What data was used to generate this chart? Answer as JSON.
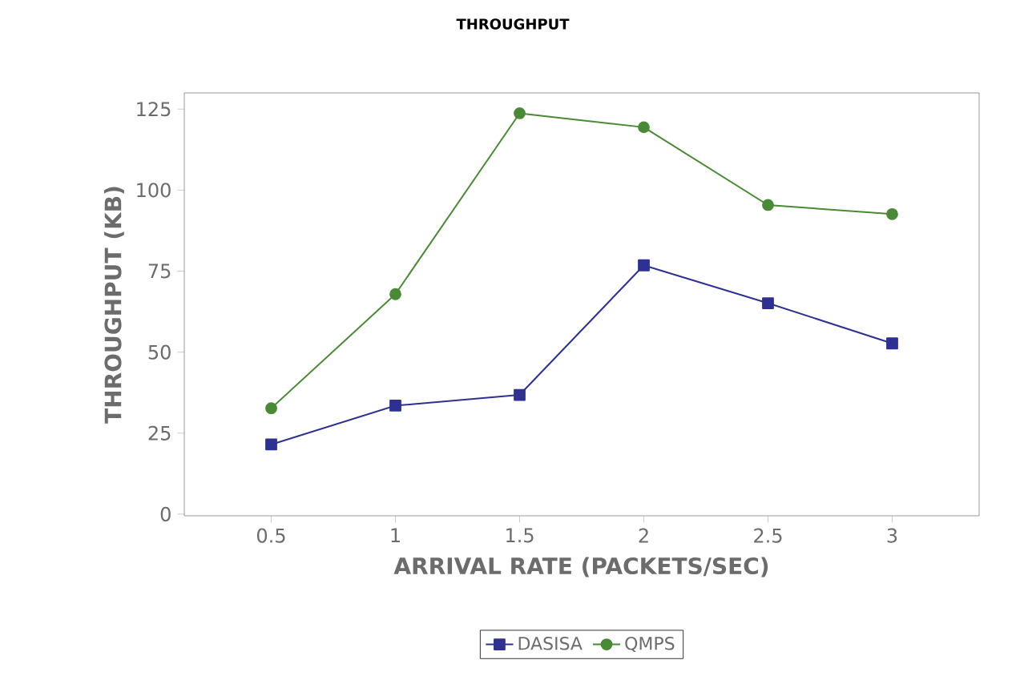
{
  "chart_data": {
    "type": "line",
    "title": "THROUGHPUT",
    "xlabel": "ARRIVAL RATE (PACKETS/SEC)",
    "ylabel": "THROUGHPUT (KB)",
    "x": [
      0.5,
      1,
      1.5,
      2,
      2.5,
      3
    ],
    "series": [
      {
        "name": "DASISA",
        "color": "#2e3192",
        "marker": "square",
        "values": [
          21.5,
          33.5,
          36.8,
          76.8,
          65.1,
          52.7
        ]
      },
      {
        "name": "QMPS",
        "color": "#4a8a36",
        "marker": "circle",
        "values": [
          32.7,
          67.9,
          123.7,
          119.4,
          95.4,
          92.6
        ]
      }
    ],
    "xlim": [
      0.15,
      3.35
    ],
    "ylim": [
      -0.5,
      130
    ],
    "xticks": [
      0.5,
      1,
      1.5,
      2,
      2.5,
      3
    ],
    "yticks": [
      0,
      25,
      50,
      75,
      100,
      125
    ],
    "grid": false,
    "legend": "bottom",
    "line_style": "solid"
  }
}
